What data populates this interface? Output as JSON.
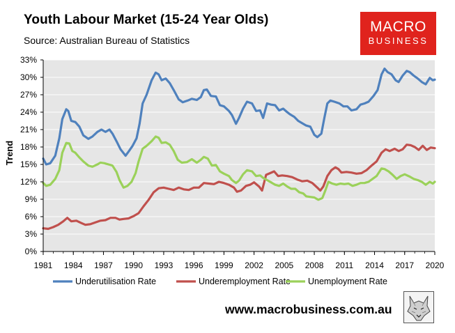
{
  "header": {
    "title": "Youth Labour Market (15-24 Year Olds)",
    "subtitle": "Source: Australian Bureau of Statistics"
  },
  "logo": {
    "line1": "MACRO",
    "line2": "BUSINESS"
  },
  "footer": {
    "website": "www.macrobusiness.com.au"
  },
  "colors": {
    "background": "#e6e6e6",
    "underutilisation": "#4f81bd",
    "underemployment": "#c0504d",
    "unemployment": "#9bd15a"
  },
  "chart_data": {
    "type": "line",
    "title": "Youth Labour Market (15-24 Year Olds)",
    "xlabel": "",
    "ylabel": "Trend",
    "xlim": [
      1981,
      2020
    ],
    "ylim": [
      0,
      33
    ],
    "x_ticks": [
      "1981",
      "1984",
      "1987",
      "1990",
      "1993",
      "1996",
      "1999",
      "2002",
      "2005",
      "2008",
      "2011",
      "2014",
      "2017",
      "2020"
    ],
    "y_ticks": [
      "0%",
      "3%",
      "6%",
      "9%",
      "12%",
      "15%",
      "18%",
      "21%",
      "24%",
      "27%",
      "30%",
      "33%"
    ],
    "legend_position": "bottom",
    "series": [
      {
        "name": "Underutilisation Rate",
        "points": [
          [
            1981.0,
            16.0
          ],
          [
            1981.3,
            15.0
          ],
          [
            1981.7,
            15.2
          ],
          [
            1982.2,
            16.5
          ],
          [
            1982.6,
            19.5
          ],
          [
            1982.9,
            22.8
          ],
          [
            1983.3,
            24.5
          ],
          [
            1983.5,
            24.2
          ],
          [
            1983.8,
            22.5
          ],
          [
            1984.2,
            22.3
          ],
          [
            1984.6,
            21.5
          ],
          [
            1985.0,
            20.0
          ],
          [
            1985.5,
            19.4
          ],
          [
            1985.9,
            19.8
          ],
          [
            1986.4,
            20.6
          ],
          [
            1986.8,
            21.0
          ],
          [
            1987.2,
            20.6
          ],
          [
            1987.6,
            21.0
          ],
          [
            1987.9,
            20.3
          ],
          [
            1988.3,
            19.0
          ],
          [
            1988.7,
            17.6
          ],
          [
            1989.2,
            16.5
          ],
          [
            1989.5,
            17.2
          ],
          [
            1989.9,
            18.2
          ],
          [
            1990.3,
            19.5
          ],
          [
            1990.6,
            22.0
          ],
          [
            1990.9,
            25.5
          ],
          [
            1991.3,
            27.0
          ],
          [
            1991.8,
            29.5
          ],
          [
            1992.2,
            30.8
          ],
          [
            1992.5,
            30.5
          ],
          [
            1992.8,
            29.5
          ],
          [
            1993.2,
            29.8
          ],
          [
            1993.6,
            29.0
          ],
          [
            1994.0,
            27.8
          ],
          [
            1994.5,
            26.2
          ],
          [
            1994.9,
            25.7
          ],
          [
            1995.4,
            26.0
          ],
          [
            1995.8,
            26.3
          ],
          [
            1996.3,
            26.1
          ],
          [
            1996.7,
            26.6
          ],
          [
            1997.0,
            27.8
          ],
          [
            1997.3,
            27.9
          ],
          [
            1997.7,
            26.8
          ],
          [
            1998.2,
            26.7
          ],
          [
            1998.6,
            25.2
          ],
          [
            1999.0,
            25.0
          ],
          [
            1999.5,
            24.2
          ],
          [
            1999.8,
            23.5
          ],
          [
            2000.2,
            22.0
          ],
          [
            2000.5,
            23.0
          ],
          [
            2000.9,
            24.6
          ],
          [
            2001.3,
            25.8
          ],
          [
            2001.8,
            25.5
          ],
          [
            2002.2,
            24.2
          ],
          [
            2002.6,
            24.3
          ],
          [
            2002.9,
            23.0
          ],
          [
            2003.3,
            25.5
          ],
          [
            2003.7,
            25.3
          ],
          [
            2004.1,
            25.2
          ],
          [
            2004.5,
            24.3
          ],
          [
            2004.9,
            24.6
          ],
          [
            2005.3,
            24.0
          ],
          [
            2005.6,
            23.6
          ],
          [
            2006.0,
            23.2
          ],
          [
            2006.4,
            22.5
          ],
          [
            2006.9,
            22.0
          ],
          [
            2007.2,
            21.7
          ],
          [
            2007.6,
            21.5
          ],
          [
            2008.0,
            20.1
          ],
          [
            2008.3,
            19.7
          ],
          [
            2008.7,
            20.3
          ],
          [
            2009.0,
            23.0
          ],
          [
            2009.3,
            25.5
          ],
          [
            2009.6,
            26.0
          ],
          [
            2010.0,
            25.8
          ],
          [
            2010.5,
            25.5
          ],
          [
            2010.9,
            25.0
          ],
          [
            2011.3,
            25.0
          ],
          [
            2011.7,
            24.3
          ],
          [
            2012.2,
            24.5
          ],
          [
            2012.6,
            25.3
          ],
          [
            2013.0,
            25.5
          ],
          [
            2013.4,
            25.8
          ],
          [
            2013.9,
            26.8
          ],
          [
            2014.3,
            27.8
          ],
          [
            2014.7,
            30.5
          ],
          [
            2015.0,
            31.5
          ],
          [
            2015.3,
            30.9
          ],
          [
            2015.7,
            30.5
          ],
          [
            2016.1,
            29.5
          ],
          [
            2016.4,
            29.2
          ],
          [
            2016.8,
            30.3
          ],
          [
            2017.2,
            31.1
          ],
          [
            2017.5,
            30.9
          ],
          [
            2017.9,
            30.3
          ],
          [
            2018.3,
            29.8
          ],
          [
            2018.7,
            29.2
          ],
          [
            2019.1,
            28.8
          ],
          [
            2019.5,
            29.9
          ],
          [
            2019.8,
            29.5
          ],
          [
            2020.0,
            29.6
          ]
        ]
      },
      {
        "name": "Underemployment Rate",
        "points": [
          [
            1981.0,
            4.0
          ],
          [
            1981.5,
            3.9
          ],
          [
            1982.0,
            4.2
          ],
          [
            1982.5,
            4.6
          ],
          [
            1983.0,
            5.2
          ],
          [
            1983.4,
            5.8
          ],
          [
            1983.8,
            5.2
          ],
          [
            1984.3,
            5.3
          ],
          [
            1984.8,
            4.9
          ],
          [
            1985.2,
            4.6
          ],
          [
            1985.7,
            4.7
          ],
          [
            1986.2,
            5.0
          ],
          [
            1986.7,
            5.3
          ],
          [
            1987.2,
            5.4
          ],
          [
            1987.7,
            5.8
          ],
          [
            1988.2,
            5.8
          ],
          [
            1988.6,
            5.5
          ],
          [
            1989.0,
            5.6
          ],
          [
            1989.5,
            5.7
          ],
          [
            1990.0,
            6.1
          ],
          [
            1990.5,
            6.6
          ],
          [
            1991.0,
            7.8
          ],
          [
            1991.5,
            8.9
          ],
          [
            1992.0,
            10.2
          ],
          [
            1992.5,
            10.9
          ],
          [
            1993.0,
            11.0
          ],
          [
            1993.5,
            10.8
          ],
          [
            1994.0,
            10.6
          ],
          [
            1994.5,
            11.0
          ],
          [
            1995.0,
            10.7
          ],
          [
            1995.5,
            10.6
          ],
          [
            1996.0,
            11.0
          ],
          [
            1996.5,
            11.0
          ],
          [
            1997.0,
            11.8
          ],
          [
            1997.5,
            11.7
          ],
          [
            1998.0,
            11.6
          ],
          [
            1998.5,
            12.0
          ],
          [
            1999.0,
            11.8
          ],
          [
            1999.5,
            11.5
          ],
          [
            2000.0,
            11.0
          ],
          [
            2000.3,
            10.3
          ],
          [
            2000.7,
            10.5
          ],
          [
            2001.2,
            11.3
          ],
          [
            2001.6,
            11.5
          ],
          [
            2002.0,
            11.9
          ],
          [
            2002.5,
            11.2
          ],
          [
            2002.8,
            10.5
          ],
          [
            2003.2,
            13.2
          ],
          [
            2003.6,
            13.5
          ],
          [
            2004.0,
            13.8
          ],
          [
            2004.4,
            13.0
          ],
          [
            2004.8,
            13.1
          ],
          [
            2005.3,
            13.0
          ],
          [
            2005.8,
            12.8
          ],
          [
            2006.3,
            12.4
          ],
          [
            2006.8,
            12.1
          ],
          [
            2007.3,
            12.2
          ],
          [
            2007.8,
            11.8
          ],
          [
            2008.3,
            11.0
          ],
          [
            2008.6,
            10.5
          ],
          [
            2008.9,
            11.2
          ],
          [
            2009.3,
            13.0
          ],
          [
            2009.7,
            14.0
          ],
          [
            2010.1,
            14.5
          ],
          [
            2010.4,
            14.2
          ],
          [
            2010.7,
            13.6
          ],
          [
            2011.2,
            13.7
          ],
          [
            2011.7,
            13.6
          ],
          [
            2012.2,
            13.4
          ],
          [
            2012.7,
            13.5
          ],
          [
            2013.2,
            14.0
          ],
          [
            2013.7,
            14.8
          ],
          [
            2014.2,
            15.5
          ],
          [
            2014.7,
            17.0
          ],
          [
            2015.1,
            17.6
          ],
          [
            2015.5,
            17.3
          ],
          [
            2016.0,
            17.7
          ],
          [
            2016.4,
            17.3
          ],
          [
            2016.8,
            17.6
          ],
          [
            2017.2,
            18.4
          ],
          [
            2017.6,
            18.3
          ],
          [
            2018.0,
            18.0
          ],
          [
            2018.4,
            17.5
          ],
          [
            2018.8,
            18.2
          ],
          [
            2019.2,
            17.5
          ],
          [
            2019.6,
            17.9
          ],
          [
            2020.0,
            17.8
          ]
        ]
      },
      {
        "name": "Unemployment Rate",
        "points": [
          [
            1981.0,
            11.8
          ],
          [
            1981.3,
            11.3
          ],
          [
            1981.7,
            11.5
          ],
          [
            1982.2,
            12.5
          ],
          [
            1982.6,
            14.0
          ],
          [
            1982.9,
            17.0
          ],
          [
            1983.3,
            18.7
          ],
          [
            1983.6,
            18.6
          ],
          [
            1983.9,
            17.3
          ],
          [
            1984.2,
            17.0
          ],
          [
            1984.6,
            16.2
          ],
          [
            1985.0,
            15.5
          ],
          [
            1985.5,
            14.8
          ],
          [
            1985.9,
            14.6
          ],
          [
            1986.4,
            15.0
          ],
          [
            1986.7,
            15.3
          ],
          [
            1987.1,
            15.2
          ],
          [
            1987.5,
            15.0
          ],
          [
            1987.9,
            14.8
          ],
          [
            1988.3,
            13.7
          ],
          [
            1988.6,
            12.3
          ],
          [
            1989.0,
            11.0
          ],
          [
            1989.4,
            11.3
          ],
          [
            1989.8,
            12.0
          ],
          [
            1990.2,
            13.5
          ],
          [
            1990.5,
            15.5
          ],
          [
            1990.9,
            17.7
          ],
          [
            1991.3,
            18.2
          ],
          [
            1991.8,
            19.0
          ],
          [
            1992.2,
            19.8
          ],
          [
            1992.5,
            19.6
          ],
          [
            1992.8,
            18.7
          ],
          [
            1993.2,
            18.8
          ],
          [
            1993.6,
            18.4
          ],
          [
            1994.0,
            17.3
          ],
          [
            1994.4,
            15.8
          ],
          [
            1994.8,
            15.3
          ],
          [
            1995.3,
            15.4
          ],
          [
            1995.8,
            15.9
          ],
          [
            1996.3,
            15.3
          ],
          [
            1996.7,
            15.8
          ],
          [
            1997.0,
            16.3
          ],
          [
            1997.4,
            16.0
          ],
          [
            1997.8,
            14.8
          ],
          [
            1998.2,
            14.9
          ],
          [
            1998.6,
            13.8
          ],
          [
            1999.0,
            13.4
          ],
          [
            1999.5,
            13.0
          ],
          [
            1999.8,
            12.3
          ],
          [
            2000.2,
            11.8
          ],
          [
            2000.5,
            12.2
          ],
          [
            2000.9,
            13.3
          ],
          [
            2001.3,
            14.0
          ],
          [
            2001.8,
            13.8
          ],
          [
            2002.2,
            13.0
          ],
          [
            2002.6,
            13.1
          ],
          [
            2002.9,
            12.7
          ],
          [
            2003.3,
            12.3
          ],
          [
            2003.7,
            11.9
          ],
          [
            2004.1,
            11.5
          ],
          [
            2004.5,
            11.3
          ],
          [
            2004.9,
            11.7
          ],
          [
            2005.3,
            11.2
          ],
          [
            2005.7,
            10.8
          ],
          [
            2006.1,
            10.8
          ],
          [
            2006.5,
            10.2
          ],
          [
            2006.9,
            10.0
          ],
          [
            2007.2,
            9.5
          ],
          [
            2007.6,
            9.4
          ],
          [
            2008.0,
            9.3
          ],
          [
            2008.4,
            8.9
          ],
          [
            2008.8,
            9.2
          ],
          [
            2009.1,
            10.5
          ],
          [
            2009.4,
            12.0
          ],
          [
            2009.8,
            11.7
          ],
          [
            2010.2,
            11.5
          ],
          [
            2010.6,
            11.7
          ],
          [
            2011.0,
            11.6
          ],
          [
            2011.4,
            11.7
          ],
          [
            2011.8,
            11.3
          ],
          [
            2012.2,
            11.5
          ],
          [
            2012.6,
            11.8
          ],
          [
            2013.0,
            11.8
          ],
          [
            2013.4,
            12.0
          ],
          [
            2013.8,
            12.5
          ],
          [
            2014.2,
            13.0
          ],
          [
            2014.7,
            14.3
          ],
          [
            2015.0,
            14.2
          ],
          [
            2015.4,
            13.8
          ],
          [
            2015.8,
            13.2
          ],
          [
            2016.2,
            12.5
          ],
          [
            2016.6,
            13.0
          ],
          [
            2017.0,
            13.3
          ],
          [
            2017.5,
            12.9
          ],
          [
            2017.9,
            12.5
          ],
          [
            2018.3,
            12.3
          ],
          [
            2018.7,
            12.0
          ],
          [
            2019.1,
            11.5
          ],
          [
            2019.5,
            12.0
          ],
          [
            2019.8,
            11.7
          ],
          [
            2020.0,
            12.0
          ]
        ]
      }
    ]
  }
}
